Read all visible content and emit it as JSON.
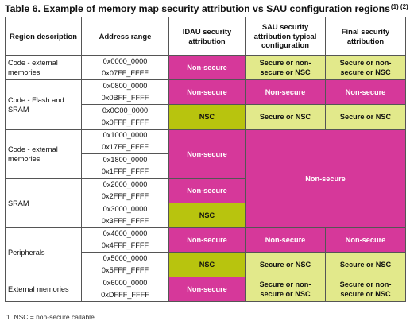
{
  "title": {
    "text": "Table 6. Example of memory map security attribution vs SAU configuration regions",
    "notes": "(1) (2)"
  },
  "headers": {
    "region": "Region description",
    "address": "Address range",
    "idau": "IDAU security attribution",
    "sau": "SAU security attribution typical configuration",
    "final": "Final security attribution"
  },
  "values": {
    "non_secure": "Non-secure",
    "nsc": "NSC",
    "secure_or_nsc": "Secure or NSC",
    "secure_or_non_secure_or_nsc": "Secure or non-secure or NSC"
  },
  "regions": {
    "code_ext_1": "Code - external memories",
    "code_flash": "Code - Flash and SRAM",
    "code_ext_2": "Code - external memories",
    "sram": "SRAM",
    "peripherals": "Peripherals",
    "ext_mem": "External memories"
  },
  "addresses": [
    {
      "start": "0x0000_0000",
      "end": "0x07FF_FFFF"
    },
    {
      "start": "0x0800_0000",
      "end": "0x0BFF_FFFF"
    },
    {
      "start": "0x0C00_0000",
      "end": "0x0FFF_FFFF"
    },
    {
      "start": "0x1000_0000",
      "end": "0x17FF_FFFF"
    },
    {
      "start": "0x1800_0000",
      "end": "0x1FFF_FFFF"
    },
    {
      "start": "0x2000_0000",
      "end": "0x2FFF_FFFF"
    },
    {
      "start": "0x3000_0000",
      "end": "0x3FFF_FFFF"
    },
    {
      "start": "0x4000_0000",
      "end": "0x4FFF_FFFF"
    },
    {
      "start": "0x5000_0000",
      "end": "0x5FFF_FFFF"
    },
    {
      "start": "0x6000_0000",
      "end": "0xDFFF_FFFF"
    }
  ],
  "colors": {
    "non_secure": "#d6389a",
    "nsc": "#b8c40e",
    "secure": "#e2e98b"
  },
  "footnote": "1.   NSC = non-secure callable."
}
